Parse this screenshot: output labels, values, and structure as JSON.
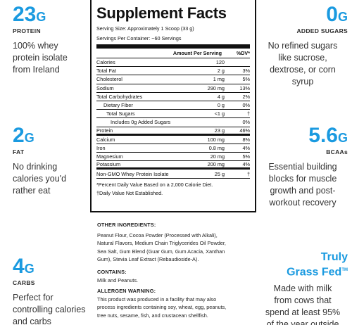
{
  "callouts": {
    "protein": {
      "value": "23",
      "unit": "G",
      "caption": "PROTEIN",
      "desc": [
        "100% whey",
        "protein isolate",
        "from Ireland"
      ]
    },
    "fat": {
      "value": "2",
      "unit": "G",
      "caption": "FAT",
      "desc": [
        "No drinking",
        "calories you'd",
        "rather eat"
      ]
    },
    "carbs": {
      "value": "4",
      "unit": "G",
      "caption": "CARBS",
      "desc": [
        "Perfect for",
        "controlling calories",
        "and carbs"
      ]
    },
    "sugars": {
      "value": "0",
      "unit": "G",
      "caption": "ADDED SUGARS",
      "desc": [
        "No refined sugars",
        "like sucrose,",
        "dextrose, or corn",
        "syrup"
      ]
    },
    "bcaas": {
      "value": "5.6",
      "unit": "G",
      "caption": "BCAAs",
      "desc": [
        "Essential building",
        "blocks for muscle",
        "growth and post-",
        "workout recovery"
      ]
    },
    "grassfed": {
      "line1": "Truly",
      "line2": "Grass Fed",
      "tm": "TM",
      "desc": [
        "Made with milk",
        "from cows that",
        "spend at least 95%",
        "of the year outside"
      ]
    }
  },
  "facts": {
    "title": "Supplement Facts",
    "serving_size": "Serving Size: Approximately 1 Scoop (33 g)",
    "servings_per": "Servings Per Container: ~60 Servings",
    "col_amount": "Amount Per Serving",
    "col_dv": "%DV*",
    "rows": [
      {
        "name": "Calories",
        "amount": "120",
        "dv": ""
      },
      {
        "name": "Total Fat",
        "amount": "2 g",
        "dv": "3%"
      },
      {
        "name": "Cholesterol",
        "amount": "1 mg",
        "dv": "5%"
      },
      {
        "name": "Sodium",
        "amount": "290 mg",
        "dv": "13%"
      },
      {
        "name": "Total Carbohydrates",
        "amount": "4 g",
        "dv": "2%"
      },
      {
        "name": "Dietary Fiber",
        "amount": "0 g",
        "dv": "0%"
      },
      {
        "name": "Total Sugars",
        "amount": "<1 g",
        "dv": "†"
      },
      {
        "name": "Includes 0g Added Sugars",
        "amount": "",
        "dv": "0%"
      },
      {
        "name": "Protein",
        "amount": "23 g",
        "dv": "46%"
      },
      {
        "name": "Calcium",
        "amount": "100 mg",
        "dv": "8%"
      },
      {
        "name": "Iron",
        "amount": "0.8 mg",
        "dv": "4%"
      },
      {
        "name": "Magnesium",
        "amount": "20 mg",
        "dv": "5%"
      },
      {
        "name": "Potassium",
        "amount": "200 mg",
        "dv": "4%"
      },
      {
        "name": "Non-GMO Whey Protein Isolate",
        "amount": "25 g",
        "dv": "†"
      }
    ],
    "footnote1": "*Percent Daily Value Based on a 2,000 Calorie Diet.",
    "footnote2": "†Daily Value Not Established."
  },
  "ingredients": {
    "other_heading": "OTHER INGREDIENTS:",
    "other_lines": [
      "Peanut Flour, Cocoa Powder (Processed with Alkali),",
      "Natural Flavors, Medium Chain Triglycerides Oil Powder,",
      "Sea Salt, Gum Blend (Guar Gum, Gum Acacia, Xanthan",
      "Gum), Stevia Leaf Extract (Rebaudioside-A)."
    ],
    "contains_heading": "CONTAINS:",
    "contains_text": "Milk and Peanuts.",
    "allergen_heading": "ALLERGEN WARNING:",
    "allergen_lines": [
      "This product was produced in a facility that may also",
      "process ingredients containing soy, wheat, egg, peanuts,",
      "tree nuts, sesame, fish, and crustacean shellfish."
    ]
  }
}
